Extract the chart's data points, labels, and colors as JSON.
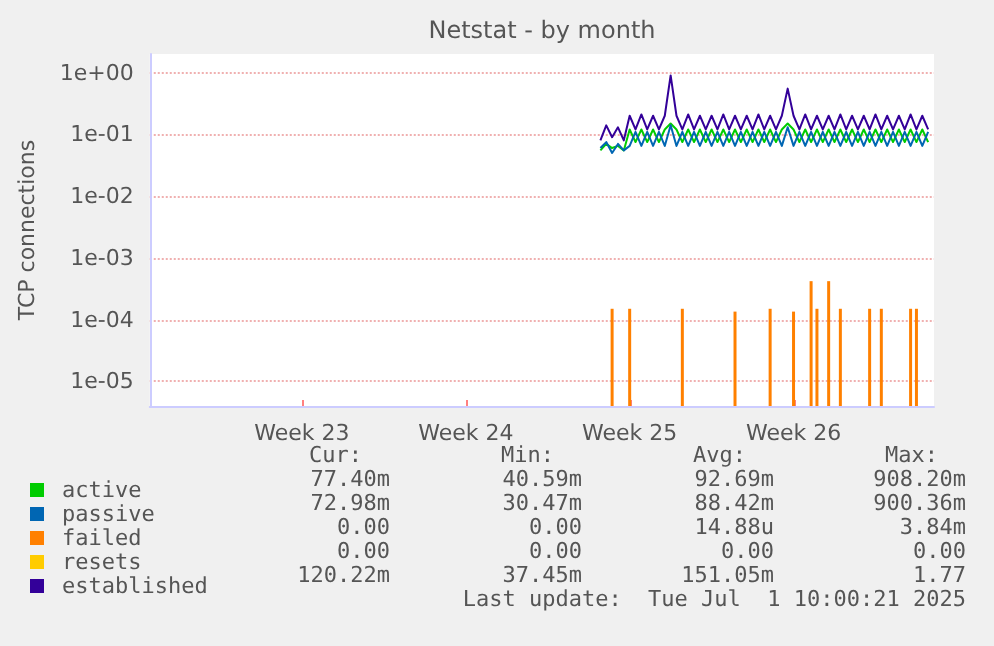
{
  "chart_data": {
    "type": "line",
    "title": "Netstat - by month",
    "ylabel": "TCP connections",
    "categories": [
      null,
      null,
      null,
      null,
      null,
      null,
      null,
      null,
      null,
      null,
      null,
      null,
      null,
      null,
      null,
      null,
      null,
      null,
      null,
      null,
      null,
      null,
      null,
      null,
      null,
      null,
      "Week 23",
      null,
      null,
      null,
      null,
      null,
      null,
      null,
      null,
      null,
      null,
      null,
      null,
      null,
      null,
      null,
      null,
      null,
      null,
      null,
      null,
      null,
      null,
      null,
      null,
      null,
      null,
      null,
      "Week 24",
      null,
      null,
      null,
      null,
      null,
      null,
      null,
      null,
      null,
      null,
      null,
      null,
      null,
      null,
      null,
      null,
      null,
      null,
      null,
      null,
      null,
      null,
      null,
      null,
      null,
      null,
      null,
      "Week 25",
      null,
      null,
      null,
      null,
      null,
      null,
      null,
      null,
      null,
      null,
      null,
      null,
      null,
      null,
      null,
      null,
      null,
      null,
      null,
      null,
      null,
      null,
      null,
      null,
      null,
      null,
      null,
      "Week 26",
      null,
      null,
      null,
      null,
      null,
      null,
      null,
      null,
      null,
      null,
      null,
      null,
      null,
      null,
      null,
      null,
      null,
      null,
      null,
      null,
      null,
      null,
      null,
      null
    ],
    "series": [
      {
        "name": "active",
        "color": "#00cc00",
        "values": [
          null,
          null,
          null,
          null,
          null,
          null,
          null,
          null,
          null,
          null,
          null,
          null,
          null,
          null,
          null,
          null,
          null,
          null,
          null,
          null,
          null,
          null,
          null,
          null,
          null,
          null,
          null,
          null,
          null,
          null,
          null,
          null,
          null,
          null,
          null,
          null,
          null,
          null,
          null,
          null,
          null,
          null,
          null,
          null,
          null,
          null,
          null,
          null,
          null,
          null,
          null,
          null,
          null,
          null,
          null,
          null,
          null,
          null,
          null,
          null,
          null,
          null,
          null,
          null,
          null,
          null,
          null,
          null,
          null,
          null,
          null,
          null,
          null,
          null,
          null,
          null,
          null,
          0.055,
          0.07,
          0.06,
          0.065,
          0.055,
          0.12,
          0.075,
          0.12,
          0.075,
          0.12,
          0.075,
          0.12,
          0.15,
          0.12,
          0.075,
          0.12,
          0.075,
          0.12,
          0.075,
          0.12,
          0.075,
          0.12,
          0.075,
          0.12,
          0.075,
          0.12,
          0.075,
          0.12,
          0.075,
          0.12,
          0.075,
          0.12,
          0.15,
          0.12,
          0.075,
          0.12,
          0.075,
          0.12,
          0.075,
          0.12,
          0.075,
          0.12,
          0.075,
          0.12,
          0.075,
          0.12,
          0.075,
          0.12,
          0.075,
          0.12,
          0.075,
          0.12,
          0.075,
          0.12,
          0.075,
          0.12,
          0.075,
          null
        ]
      },
      {
        "name": "passive",
        "color": "#0066b3",
        "values": [
          null,
          null,
          null,
          null,
          null,
          null,
          null,
          null,
          null,
          null,
          null,
          null,
          null,
          null,
          null,
          null,
          null,
          null,
          null,
          null,
          null,
          null,
          null,
          null,
          null,
          null,
          null,
          null,
          null,
          null,
          null,
          null,
          null,
          null,
          null,
          null,
          null,
          null,
          null,
          null,
          null,
          null,
          null,
          null,
          null,
          null,
          null,
          null,
          null,
          null,
          null,
          null,
          null,
          null,
          null,
          null,
          null,
          null,
          null,
          null,
          null,
          null,
          null,
          null,
          null,
          null,
          null,
          null,
          null,
          null,
          null,
          null,
          null,
          null,
          null,
          null,
          null,
          0.06,
          0.075,
          0.05,
          0.07,
          0.055,
          0.065,
          0.11,
          0.065,
          0.11,
          0.065,
          0.11,
          0.065,
          0.14,
          0.065,
          0.11,
          0.065,
          0.11,
          0.065,
          0.11,
          0.065,
          0.11,
          0.065,
          0.11,
          0.065,
          0.11,
          0.065,
          0.11,
          0.065,
          0.11,
          0.065,
          0.11,
          0.065,
          0.13,
          0.065,
          0.11,
          0.065,
          0.11,
          0.065,
          0.11,
          0.065,
          0.11,
          0.065,
          0.11,
          0.065,
          0.11,
          0.065,
          0.11,
          0.065,
          0.11,
          0.065,
          0.11,
          0.065,
          0.11,
          0.065,
          0.11,
          0.065,
          0.11,
          null
        ]
      },
      {
        "name": "failed",
        "color": "#ff8000",
        "type": "bar",
        "values": [
          null,
          null,
          null,
          null,
          null,
          null,
          null,
          null,
          null,
          null,
          null,
          null,
          null,
          null,
          null,
          null,
          null,
          null,
          null,
          null,
          null,
          null,
          null,
          null,
          null,
          null,
          null,
          null,
          null,
          null,
          null,
          null,
          null,
          null,
          null,
          null,
          null,
          null,
          null,
          null,
          null,
          null,
          null,
          null,
          null,
          null,
          null,
          null,
          null,
          null,
          null,
          null,
          null,
          null,
          null,
          null,
          null,
          null,
          null,
          null,
          null,
          null,
          null,
          null,
          null,
          null,
          null,
          null,
          null,
          null,
          null,
          null,
          null,
          null,
          null,
          null,
          null,
          null,
          null,
          0.00015,
          null,
          null,
          0.00015,
          null,
          null,
          null,
          null,
          null,
          null,
          null,
          null,
          0.00015,
          null,
          null,
          null,
          null,
          null,
          null,
          null,
          null,
          0.000135,
          null,
          null,
          null,
          null,
          null,
          0.00015,
          null,
          null,
          null,
          0.000135,
          null,
          null,
          0.00042,
          0.00015,
          null,
          0.00042,
          null,
          0.00015,
          null,
          null,
          null,
          null,
          0.00015,
          null,
          0.00015,
          null,
          null,
          null,
          null,
          0.00015,
          0.00015,
          null,
          null,
          null
        ]
      },
      {
        "name": "resets",
        "color": "#ffcc00",
        "values": [
          null,
          null,
          null,
          null,
          null,
          null,
          null,
          null,
          null,
          null,
          null,
          null,
          null,
          null,
          null,
          null,
          null,
          null,
          null,
          null,
          null,
          null,
          null,
          null,
          null,
          null,
          null,
          null,
          null,
          null,
          null,
          null,
          null,
          null,
          null,
          null,
          null,
          null,
          null,
          null,
          null,
          null,
          null,
          null,
          null,
          null,
          null,
          null,
          null,
          null,
          null,
          null,
          null,
          null,
          null,
          null,
          null,
          null,
          null,
          null,
          null,
          null,
          null,
          null,
          null,
          null,
          null,
          null,
          null,
          null,
          null,
          null,
          null,
          null,
          null,
          null,
          null,
          null,
          null,
          null,
          null,
          null,
          null,
          null,
          null,
          null,
          null,
          null,
          null,
          null,
          null,
          null,
          null,
          null,
          null,
          null,
          null,
          null,
          null,
          null,
          null,
          null,
          null,
          null,
          null,
          null,
          null,
          null,
          null,
          null,
          null,
          null,
          null,
          null,
          null,
          null,
          null,
          null,
          null,
          null,
          null,
          null,
          null,
          null,
          null,
          null,
          null,
          null,
          null,
          null,
          null,
          null,
          null,
          null,
          null
        ]
      },
      {
        "name": "established",
        "color": "#330099",
        "values": [
          null,
          null,
          null,
          null,
          null,
          null,
          null,
          null,
          null,
          null,
          null,
          null,
          null,
          null,
          null,
          null,
          null,
          null,
          null,
          null,
          null,
          null,
          null,
          null,
          null,
          null,
          null,
          null,
          null,
          null,
          null,
          null,
          null,
          null,
          null,
          null,
          null,
          null,
          null,
          null,
          null,
          null,
          null,
          null,
          null,
          null,
          null,
          null,
          null,
          null,
          null,
          null,
          null,
          null,
          null,
          null,
          null,
          null,
          null,
          null,
          null,
          null,
          null,
          null,
          null,
          null,
          null,
          null,
          null,
          null,
          null,
          null,
          null,
          null,
          null,
          null,
          null,
          0.08,
          0.14,
          0.09,
          0.13,
          0.08,
          0.2,
          0.12,
          0.21,
          0.12,
          0.2,
          0.12,
          0.2,
          0.9,
          0.2,
          0.12,
          0.21,
          0.12,
          0.2,
          0.12,
          0.2,
          0.12,
          0.21,
          0.12,
          0.2,
          0.12,
          0.2,
          0.12,
          0.21,
          0.12,
          0.2,
          0.12,
          0.2,
          0.55,
          0.2,
          0.12,
          0.21,
          0.12,
          0.2,
          0.12,
          0.2,
          0.12,
          0.21,
          0.12,
          0.2,
          0.12,
          0.2,
          0.12,
          0.21,
          0.12,
          0.2,
          0.12,
          0.2,
          0.12,
          0.21,
          0.12,
          0.2,
          0.12,
          null
        ]
      }
    ],
    "ylim": [
      4e-06,
      2
    ],
    "yticks": [
      {
        "value": 1,
        "label": "1e+00"
      },
      {
        "value": 0.1,
        "label": "1e-01"
      },
      {
        "value": 0.01,
        "label": "1e-02"
      },
      {
        "value": 0.001,
        "label": "1e-03"
      },
      {
        "value": 0.0001,
        "label": "1e-04"
      },
      {
        "value": 1e-05,
        "label": "1e-05"
      }
    ],
    "log": "y",
    "grid": "y",
    "legend": "bottom left",
    "marker": "none",
    "line_style": "solid",
    "annotations": [
      "Cur:",
      "Min:",
      "Avg:",
      "Max:",
      "77.40m",
      "40.59m",
      "92.69m",
      "908.20m",
      "72.98m",
      "30.47m",
      "88.42m",
      "900.36m",
      "0.00",
      "0.00",
      "14.88u",
      "3.84m",
      "0.00",
      "0.00",
      "0.00",
      "0.00",
      "120.22m",
      "37.45m",
      "151.05m",
      "1.77",
      "Last update:  Tue Jul  1 10:00:21 2025"
    ]
  }
}
